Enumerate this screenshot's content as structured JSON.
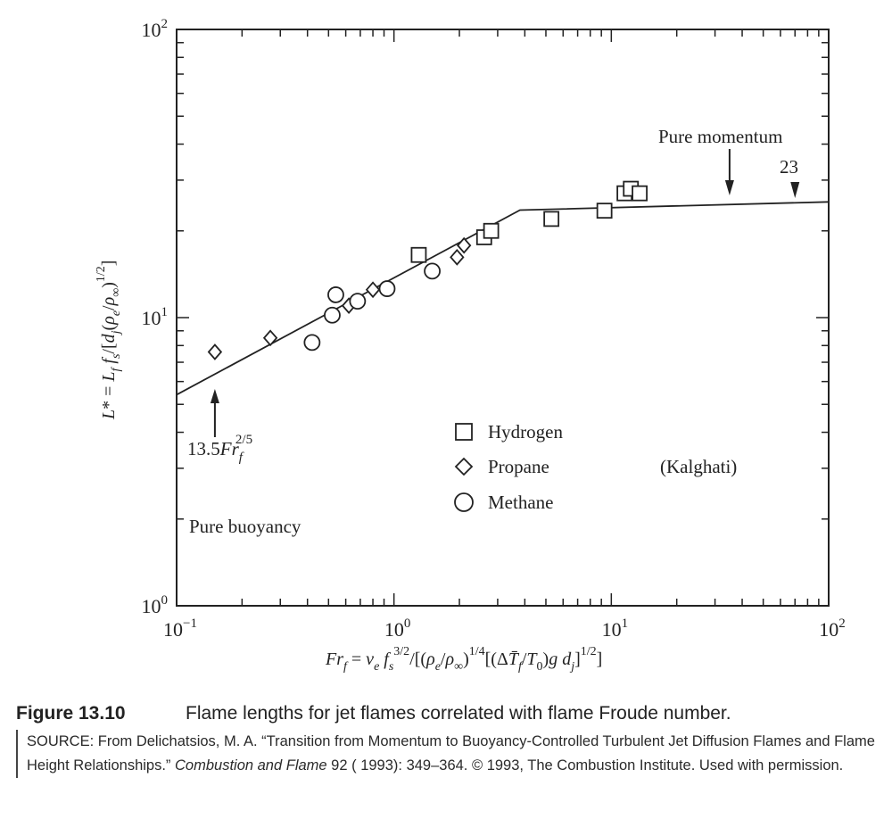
{
  "chart_data": {
    "type": "scatter",
    "xscale": "log",
    "yscale": "log",
    "xlim": [
      0.1,
      100
    ],
    "ylim": [
      1,
      100
    ],
    "x_tick_labels": [
      {
        "value": 0.1,
        "base": "10",
        "exp": "−1"
      },
      {
        "value": 1,
        "base": "10",
        "exp": "0"
      },
      {
        "value": 10,
        "base": "10",
        "exp": "1"
      },
      {
        "value": 100,
        "base": "10",
        "exp": "2"
      }
    ],
    "y_tick_labels": [
      {
        "value": 1,
        "base": "10",
        "exp": "0"
      },
      {
        "value": 10,
        "base": "10",
        "exp": "1"
      },
      {
        "value": 100,
        "base": "10",
        "exp": "2"
      }
    ],
    "grid": false,
    "xlabel": "Fr_f = v_e f_s^{3/2}/[(ρ_e/ρ_∞)^{1/4}[(ΔT̄_f/T_0) g d_j]^{1/2}]",
    "ylabel": "L* = L_f f_s/[d_j(ρ_e/ρ_∞)^{1/2}]",
    "series": [
      {
        "name": "Hydrogen",
        "marker": "square",
        "points": [
          [
            1.3,
            16.5
          ],
          [
            2.6,
            19.0
          ],
          [
            2.8,
            20.0
          ],
          [
            5.3,
            22.0
          ],
          [
            9.3,
            23.5
          ],
          [
            11.5,
            27.0
          ],
          [
            12.3,
            28.0
          ],
          [
            13.5,
            27.0
          ]
        ]
      },
      {
        "name": "Propane",
        "marker": "diamond",
        "points": [
          [
            0.15,
            7.6
          ],
          [
            0.27,
            8.5
          ],
          [
            0.62,
            11.0
          ],
          [
            0.8,
            12.5
          ],
          [
            1.95,
            16.2
          ],
          [
            2.1,
            17.8
          ]
        ]
      },
      {
        "name": "Methane",
        "marker": "circle",
        "points": [
          [
            0.42,
            8.2
          ],
          [
            0.52,
            10.2
          ],
          [
            0.54,
            12.0
          ],
          [
            0.68,
            11.4
          ],
          [
            0.93,
            12.6
          ],
          [
            1.5,
            14.5
          ]
        ]
      }
    ],
    "fit_line": [
      [
        0.1,
        5.4
      ],
      [
        3.8,
        23.6
      ],
      [
        100,
        25.2
      ]
    ],
    "annotations": {
      "pure_momentum": "Pure momentum",
      "value_23": "23",
      "buoyancy_fit": {
        "prefix": "13.5",
        "var": "Fr",
        "sub": "f",
        "exp": "2/5"
      },
      "pure_buoyancy": "Pure buoyancy",
      "kalghati": "(Kalghati)"
    },
    "arrows": {
      "fit_marker_x": 0.15,
      "momentum_marker_x": 35,
      "value23_marker_x": 70
    }
  },
  "caption": {
    "figure_number": "Figure 13.10",
    "title": "Flame lengths for jet flames correlated with flame Froude number.",
    "source_prefix": "SOURCE: From Delichatsios, M. A. “Transition from Momentum to Buoyancy-Controlled Turbulent Jet Diffusion Flames and Flame Height Relationships.” ",
    "source_journal": "Combustion and Flame",
    "source_suffix": " 92 ( 1993): 349–364. © 1993, The Combustion Institute. Used with permission."
  }
}
